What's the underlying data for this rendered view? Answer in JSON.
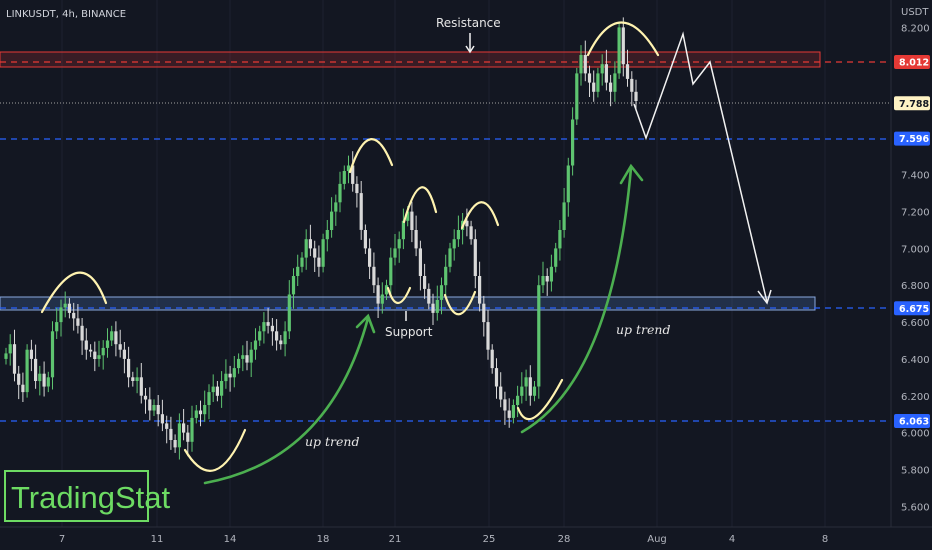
{
  "chart_data": {
    "type": "candlestick",
    "symbol_title": "LINKUSDT, 4h, BINANCE",
    "unit": "USDT",
    "x_tick_labels": [
      "7",
      "11",
      "14",
      "18",
      "21",
      "25",
      "28",
      "Aug",
      "4",
      "8"
    ],
    "ylim": [
      5.5,
      8.3
    ],
    "y_tick_labels": [
      "8.200",
      "7.400",
      "7.200",
      "7.000",
      "6.800",
      "6.600",
      "6.400",
      "6.200",
      "6.000",
      "5.800",
      "5.600"
    ],
    "price_tags": [
      {
        "label": "8.012",
        "value": 8.012,
        "color": "#e53935"
      },
      {
        "label": "7.788",
        "value": 7.788,
        "color": "#fff3c4"
      },
      {
        "label": "7.596",
        "value": 7.596,
        "color": "#2962ff"
      },
      {
        "label": "6.675",
        "value": 6.675,
        "color": "#2962ff"
      },
      {
        "label": "6.063",
        "value": 6.063,
        "color": "#2962ff"
      }
    ],
    "zones": [
      {
        "name": "resistance",
        "from": 7.96,
        "to": 8.06,
        "color": "#e53935"
      },
      {
        "name": "support",
        "from": 6.66,
        "to": 6.73,
        "color": "#5b8bd6"
      }
    ],
    "horizontal_levels": [
      8.012,
      7.596,
      6.675,
      6.063
    ],
    "closes": [
      6.43,
      6.48,
      6.32,
      6.26,
      6.22,
      6.45,
      6.4,
      6.28,
      6.32,
      6.25,
      6.3,
      6.55,
      6.6,
      6.68,
      6.7,
      6.65,
      6.62,
      6.58,
      6.5,
      6.45,
      6.44,
      6.4,
      6.42,
      6.46,
      6.5,
      6.55,
      6.48,
      6.45,
      6.4,
      6.3,
      6.28,
      6.3,
      6.2,
      6.18,
      6.12,
      6.15,
      6.1,
      6.05,
      6.02,
      5.96,
      5.92,
      6.05,
      6.0,
      5.95,
      6.08,
      6.12,
      6.1,
      6.15,
      6.22,
      6.25,
      6.2,
      6.28,
      6.32,
      6.3,
      6.35,
      6.4,
      6.42,
      6.38,
      6.45,
      6.5,
      6.55,
      6.6,
      6.58,
      6.55,
      6.5,
      6.48,
      6.55,
      6.75,
      6.85,
      6.9,
      6.95,
      7.05,
      7.0,
      6.95,
      6.9,
      7.05,
      7.1,
      7.2,
      7.25,
      7.35,
      7.42,
      7.45,
      7.35,
      7.3,
      7.1,
      7.0,
      6.9,
      6.8,
      6.7,
      6.75,
      6.8,
      6.95,
      7.0,
      7.05,
      7.15,
      7.2,
      7.1,
      7.0,
      6.85,
      6.78,
      6.7,
      6.65,
      6.72,
      6.8,
      6.9,
      7.0,
      7.05,
      7.1,
      7.15,
      7.12,
      7.05,
      6.85,
      6.7,
      6.6,
      6.45,
      6.35,
      6.25,
      6.18,
      6.12,
      6.08,
      6.15,
      6.2,
      6.25,
      6.3,
      6.2,
      6.25,
      6.8,
      6.85,
      6.82,
      6.9,
      7.0,
      7.1,
      7.25,
      7.45,
      7.7,
      7.95,
      8.05,
      7.95,
      7.9,
      7.85,
      7.95,
      8.0,
      7.9,
      7.85,
      7.95,
      8.2,
      8.0,
      7.92,
      7.85,
      7.8
    ]
  },
  "annotations": {
    "resistance_label": "Resistance",
    "support_label": "Support",
    "up_trend_label_1": "up trend",
    "up_trend_label_2": "up trend"
  },
  "watermark": "TradingStat",
  "colors": {
    "background": "#131722",
    "bull": "#5ec470",
    "bear": "#d9d9d9",
    "accent_green": "#4caf50",
    "wick_yellow": "#fff3b0"
  }
}
